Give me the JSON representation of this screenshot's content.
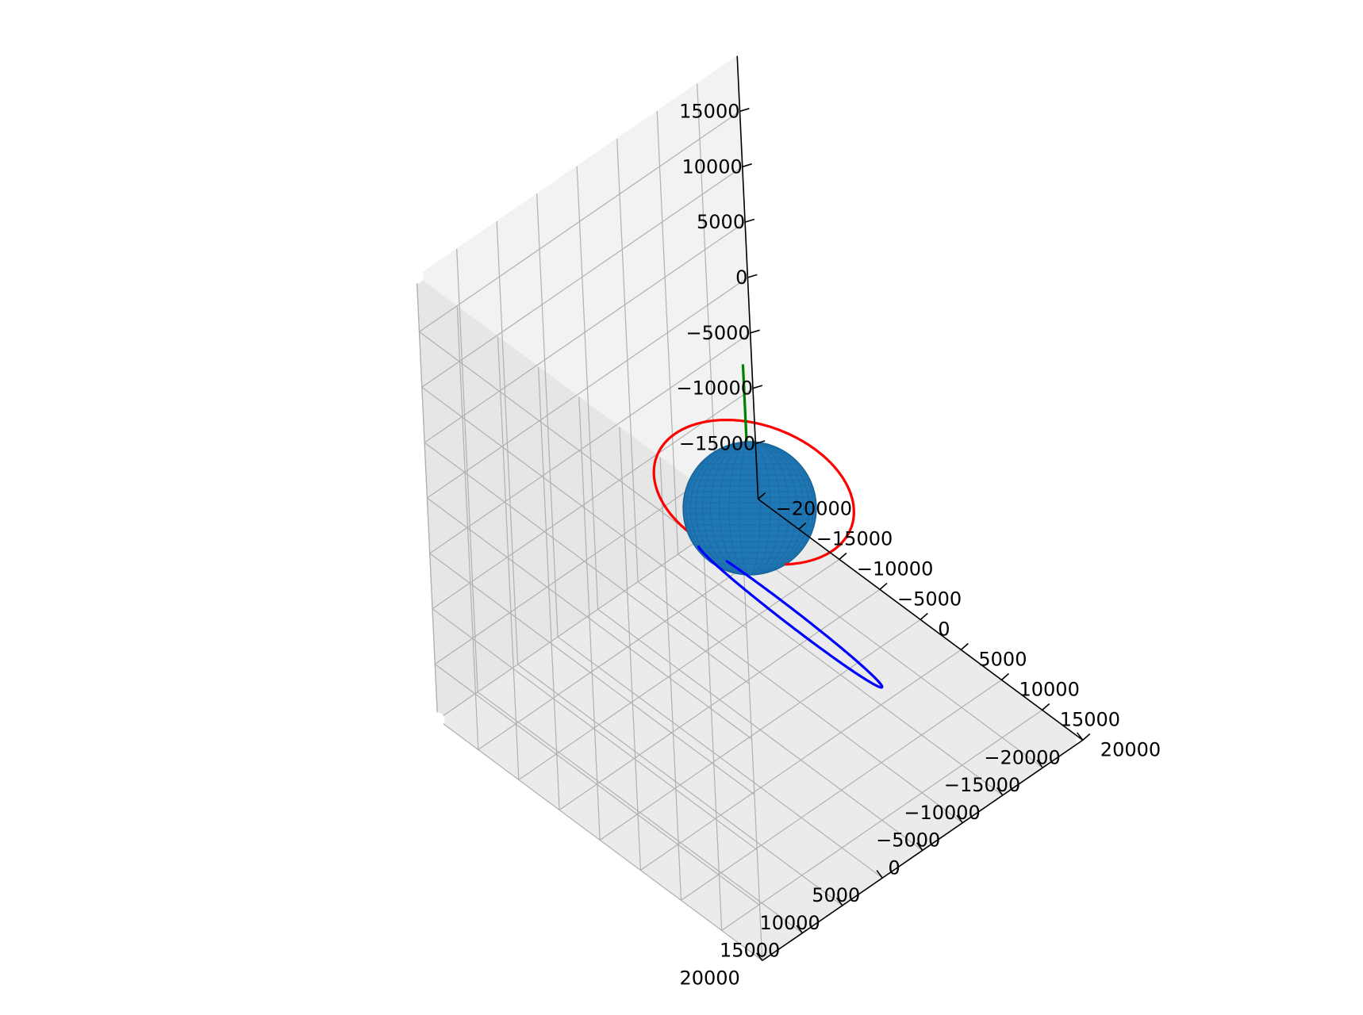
{
  "chart_data": {
    "type": "3d-line",
    "title": "",
    "xlabel": "",
    "ylabel": "",
    "zlabel": "",
    "xlim": [
      -20000,
      20000
    ],
    "ylim": [
      -20000,
      20000
    ],
    "zlim": [
      -20000,
      20000
    ],
    "grid": true,
    "axis_ticks": {
      "x": [
        "−20000",
        "−15000",
        "−10000",
        "−5000",
        "0",
        "5000",
        "10000",
        "15000",
        "20000"
      ],
      "y": [
        "−20000",
        "−15000",
        "−10000",
        "−5000",
        "0",
        "5000",
        "10000",
        "15000",
        "20000"
      ],
      "z": [
        "−15000",
        "−10000",
        "−5000",
        "0",
        "5000",
        "10000",
        "15000"
      ]
    },
    "sphere": {
      "center": [
        0,
        0,
        0
      ],
      "radius": 6378,
      "color": "#1f77b4"
    },
    "series": [
      {
        "color": "#ff0000",
        "shape": "ellipse",
        "center": [
          1370,
          700,
          2550
        ],
        "semi_major": 9700,
        "semi_minor": 7700,
        "inclination_deg": 0
      },
      {
        "color": "#0000ff",
        "shape": "ellipse",
        "center": [
          6000,
          1400,
          -5800
        ],
        "semi_major": 11000,
        "semi_minor": 4300,
        "inclination_deg": 55
      },
      {
        "color": "#008000",
        "shape": "segment",
        "from": [
          0,
          0,
          0
        ],
        "to": [
          0,
          0,
          13000
        ]
      }
    ],
    "points": [
      {
        "x": -20000,
        "y": 20000,
        "z": 20000,
        "color": "#ffffff"
      },
      {
        "x": 20000,
        "y": 20000,
        "z": 20000,
        "color": "#ffffff"
      },
      {
        "x": 20000,
        "y": -20000,
        "z": 20000,
        "color": "#ffffff"
      },
      {
        "x": -20000,
        "y": 20000,
        "z": -20000,
        "color": "#ffffff"
      },
      {
        "x": 20000,
        "y": -20000,
        "z": -20000,
        "color": "#ffffff"
      },
      {
        "x": -20000,
        "y": -20000,
        "z": -20000,
        "color": "#ffffff"
      }
    ]
  }
}
